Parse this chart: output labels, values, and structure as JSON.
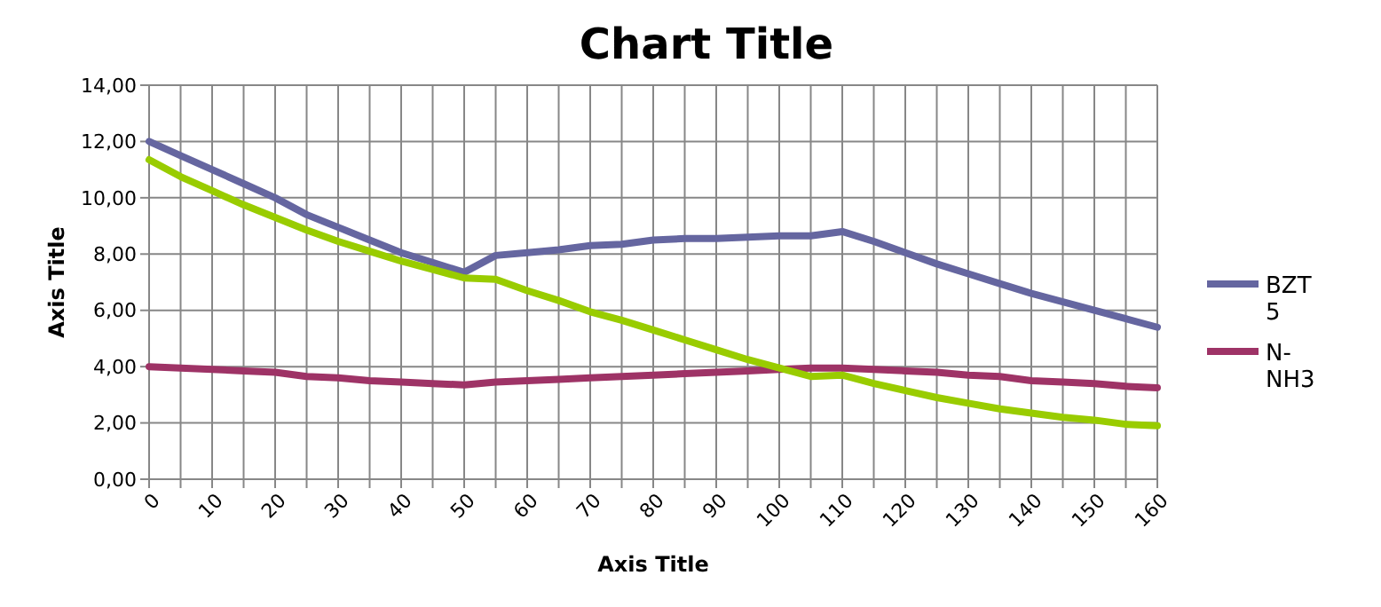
{
  "chart_data": {
    "type": "line",
    "title": "Chart Title",
    "xlabel": "Axis Title",
    "ylabel": "Axis Title",
    "x": [
      0,
      5,
      10,
      15,
      20,
      25,
      30,
      35,
      40,
      45,
      50,
      55,
      60,
      65,
      70,
      75,
      80,
      85,
      90,
      95,
      100,
      105,
      110,
      115,
      120,
      125,
      130,
      135,
      140,
      145,
      150,
      155,
      160
    ],
    "series": [
      {
        "name": "BZT5",
        "color": "#6566a0",
        "values": [
          12.0,
          11.5,
          11.0,
          10.5,
          10.0,
          9.4,
          8.95,
          8.5,
          8.05,
          7.7,
          7.35,
          7.95,
          8.05,
          8.15,
          8.3,
          8.35,
          8.5,
          8.55,
          8.55,
          8.6,
          8.65,
          8.65,
          8.8,
          8.45,
          8.05,
          7.65,
          7.3,
          6.95,
          6.6,
          6.3,
          6.0,
          5.7,
          5.4
        ]
      },
      {
        "name": "N-NH3",
        "color": "#9e3366",
        "values": [
          4.0,
          3.95,
          3.9,
          3.85,
          3.8,
          3.65,
          3.6,
          3.5,
          3.45,
          3.4,
          3.35,
          3.45,
          3.5,
          3.55,
          3.6,
          3.65,
          3.7,
          3.75,
          3.8,
          3.85,
          3.9,
          3.95,
          3.95,
          3.9,
          3.85,
          3.8,
          3.7,
          3.65,
          3.5,
          3.45,
          3.4,
          3.3,
          3.25
        ]
      },
      {
        "color": "#99cc00",
        "values": [
          11.35,
          10.75,
          10.25,
          9.75,
          9.3,
          8.85,
          8.45,
          8.1,
          7.75,
          7.45,
          7.15,
          7.1,
          6.7,
          6.35,
          5.95,
          5.65,
          5.3,
          4.95,
          4.6,
          4.25,
          3.95,
          3.65,
          3.7,
          3.4,
          3.15,
          2.9,
          2.7,
          2.5,
          2.35,
          2.2,
          2.1,
          1.95,
          1.9
        ]
      }
    ],
    "xlim": [
      0,
      160
    ],
    "xticks": [
      0,
      {
        "value": 5,
        "label": null
      },
      10,
      {
        "value": 15,
        "label": null
      },
      20,
      {
        "value": 25,
        "label": null
      },
      30,
      {
        "value": 35,
        "label": null
      },
      40,
      {
        "value": 45,
        "label": null
      },
      50,
      {
        "value": 55,
        "label": null
      },
      60,
      {
        "value": 65,
        "label": null
      },
      70,
      {
        "value": 75,
        "label": null
      },
      80,
      {
        "value": 85,
        "label": null
      },
      90,
      {
        "value": 95,
        "label": null
      },
      100,
      {
        "value": 105,
        "label": null
      },
      110,
      {
        "value": 115,
        "label": null
      },
      120,
      {
        "value": 125,
        "label": null
      },
      130,
      {
        "value": 135,
        "label": null
      },
      140,
      {
        "value": 145,
        "label": null
      },
      150,
      {
        "value": 155,
        "label": null
      },
      160
    ],
    "ylim": [
      0,
      14
    ],
    "yticks": [
      {
        "value": 0,
        "label": "0,00"
      },
      {
        "value": 2,
        "label": "2,00"
      },
      {
        "value": 4,
        "label": "4,00"
      },
      {
        "value": 6,
        "label": "6,00"
      },
      {
        "value": 8,
        "label": "8,00"
      },
      {
        "value": 10,
        "label": "10,00"
      },
      {
        "value": 12,
        "label": "12,00"
      },
      {
        "value": 14,
        "label": "14,00"
      }
    ],
    "grid": true,
    "legend": "right",
    "marker": "none",
    "line_style": "solid"
  }
}
